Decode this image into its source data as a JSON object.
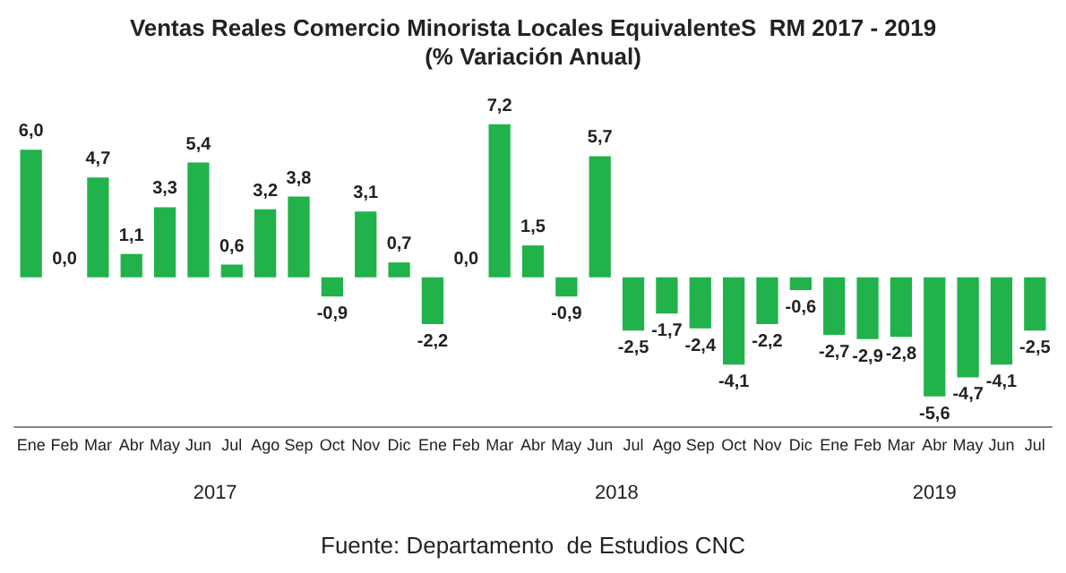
{
  "chart_data": {
    "type": "bar",
    "title": "Ventas Reales Comercio Minorista Locales EquivalenteS  RM 2017 - 2019",
    "subtitle": "(% Variación Anual)",
    "categories": [
      "Ene",
      "Feb",
      "Mar",
      "Abr",
      "May",
      "Jun",
      "Jul",
      "Ago",
      "Sep",
      "Oct",
      "Nov",
      "Dic",
      "Ene",
      "Feb",
      "Mar",
      "Abr",
      "May",
      "Jun",
      "Jul",
      "Ago",
      "Sep",
      "Oct",
      "Nov",
      "Dic",
      "Ene",
      "Feb",
      "Mar",
      "Abr",
      "May",
      "Jun",
      "Jul"
    ],
    "values": [
      6.0,
      0.0,
      4.7,
      1.1,
      3.3,
      5.4,
      0.6,
      3.2,
      3.8,
      -0.9,
      3.1,
      0.7,
      -2.2,
      0.0,
      7.2,
      1.5,
      -0.9,
      5.7,
      -2.5,
      -1.7,
      -2.4,
      -4.1,
      -2.2,
      -0.6,
      -2.7,
      -2.9,
      -2.8,
      -5.6,
      -4.7,
      -4.1,
      -2.5
    ],
    "value_labels": [
      "6,0",
      "0,0",
      "4,7",
      "1,1",
      "3,3",
      "5,4",
      "0,6",
      "3,2",
      "3,8",
      "-0,9",
      "3,1",
      "0,7",
      "-2,2",
      "0,0",
      "7,2",
      "1,5",
      "-0,9",
      "5,7",
      "-2,5",
      "-1,7",
      "-2,4",
      "-4,1",
      "-2,2",
      "-0,6",
      "-2,7",
      "-2,9",
      "-2,8",
      "-5,6",
      "-4,7",
      "-4,1",
      "-2,5"
    ],
    "color": "#21b24b",
    "annotations": [
      "2017",
      "2018",
      "2019",
      "Fuente: Departamento  de Estudios CNC"
    ]
  }
}
